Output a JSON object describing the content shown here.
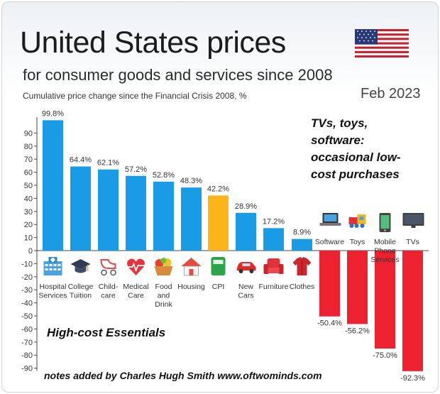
{
  "header": {
    "title": "United States prices",
    "subtitle": "for consumer goods and services since 2008",
    "caption": "Cumulative price change since the Financial Crisis 2008, %",
    "date": "Feb 2023"
  },
  "notes": {
    "occasional": "TVs, toys,\nsoftware:\noccasional low-\ncost purchases",
    "high_cost": "High-cost Essentials",
    "footer": "notes added by Charles Hugh Smith  www.oftwominds.com"
  },
  "colors": {
    "positive": "#1a9be6",
    "highlight": "#fbb41a",
    "negative": "#ee2131",
    "axis": "#444444"
  },
  "chart_data": {
    "type": "bar",
    "ylim": [
      -90,
      100
    ],
    "yticks": [
      90,
      80,
      70,
      60,
      50,
      40,
      30,
      20,
      10,
      0,
      -10,
      -20,
      -30,
      -40,
      -50,
      -60,
      -70,
      -80,
      -90
    ],
    "categories": [
      "Hospital Services",
      "College Tuition",
      "Child-care",
      "Medical Care",
      "Food and Drink",
      "Housing",
      "CPI",
      "New Cars",
      "Furniture",
      "Clothes",
      "Software",
      "Toys",
      "Mobile Phone Services",
      "TVs"
    ],
    "category_lines": [
      [
        "Hospital",
        "Services"
      ],
      [
        "College",
        "Tuition"
      ],
      [
        "Child-",
        "care"
      ],
      [
        "Medical",
        "Care"
      ],
      [
        "Food",
        "and",
        "Drink"
      ],
      [
        "Housing"
      ],
      [
        "CPI"
      ],
      [
        "New",
        "Cars"
      ],
      [
        "Furniture"
      ],
      [
        "Clothes"
      ],
      [
        "Software"
      ],
      [
        "Toys"
      ],
      [
        "Mobile",
        "Phone",
        "Services"
      ],
      [
        "TVs"
      ]
    ],
    "values": [
      99.8,
      64.4,
      62.1,
      57.2,
      52.8,
      48.3,
      42.2,
      28.9,
      17.2,
      8.9,
      -50.4,
      -56.2,
      -75.0,
      -92.3
    ],
    "value_labels": [
      "99.8%",
      "64.4%",
      "62.1%",
      "57.2%",
      "52.8%",
      "48.3%",
      "42.2%",
      "28.9%",
      "17.2%",
      "8.9%",
      "-50.4%",
      "-56.2%",
      "-75.0%",
      "-92.3%"
    ],
    "highlight": "CPI",
    "icons": [
      "hospital-icon",
      "graduation-cap-icon",
      "stroller-icon",
      "heart-pulse-icon",
      "food-basket-icon",
      "house-icon",
      "cpi-icon",
      "car-icon",
      "armchair-icon",
      "clothes-icon",
      "laptop-icon",
      "toy-train-icon",
      "mobile-phone-icon",
      "tv-icon"
    ],
    "grid": false
  }
}
